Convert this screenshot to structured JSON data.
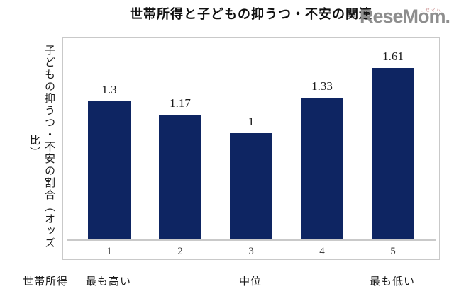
{
  "header": {
    "title": "世帯所得と子どもの抑うつ・不安の関連",
    "logo": {
      "text": "ReseMom.",
      "ruby": "リセマム"
    }
  },
  "colors": {
    "bar": "#0e2562",
    "axis": "#c9c9c9",
    "logo_gray": "#8e8e8e",
    "logo_ruby": "#c98f8f",
    "text": "#1a1a1a"
  },
  "chart_data": {
    "type": "bar",
    "title": "世帯所得と子どもの抑うつ・不安の関連",
    "categories": [
      "1",
      "2",
      "3",
      "4",
      "5"
    ],
    "values": [
      1.3,
      1.17,
      1,
      1.33,
      1.61
    ],
    "value_labels": [
      "1.3",
      "1.17",
      "1",
      "1.33",
      "1.61"
    ],
    "ylabel": "子どもの抑うつ・不安の割合（オッズ比）",
    "xlabel": "世帯所得",
    "x_annotations": [
      {
        "text": "最も高い",
        "slot": 0
      },
      {
        "text": "中位",
        "slot": 2
      },
      {
        "text": "最も低い",
        "slot": 4
      }
    ],
    "ylim": [
      0,
      1.9
    ],
    "grid": false,
    "legend": "none",
    "bar_color": "#0e2562"
  }
}
